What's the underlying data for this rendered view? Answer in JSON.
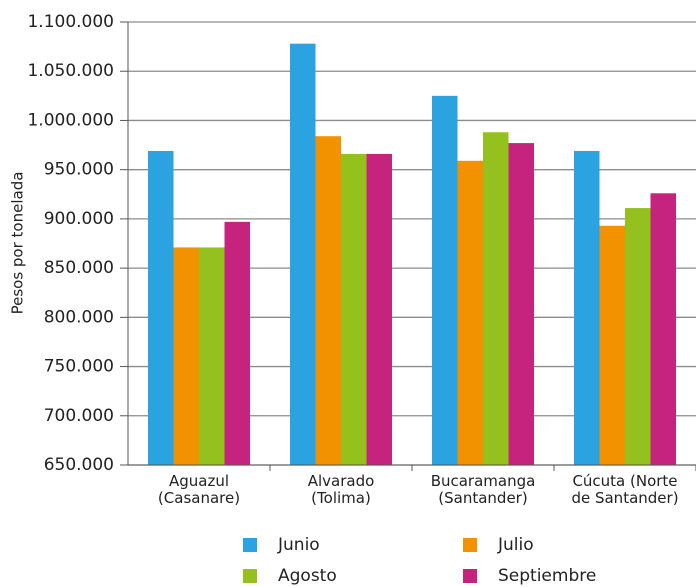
{
  "chart_data": {
    "type": "bar",
    "y_label": "Pesos por tonelada",
    "categories": [
      "Aguazul (Casanare)",
      "Alvarado (Tolima)",
      "Bucaramanga (Santander)",
      "Cúcuta (Norte de Santander)"
    ],
    "series": [
      {
        "name": "Junio",
        "color": "#2aa3e0",
        "values": [
          969000,
          1078000,
          1025000,
          969000
        ]
      },
      {
        "name": "Julio",
        "color": "#f39200",
        "values": [
          871000,
          984000,
          959000,
          893000
        ]
      },
      {
        "name": "Agosto",
        "color": "#95c11f",
        "values": [
          871000,
          966000,
          988000,
          911000
        ]
      },
      {
        "name": "Septiembre",
        "color": "#c6237f",
        "values": [
          897000,
          966000,
          977000,
          926000
        ]
      }
    ],
    "ylim": [
      650000,
      1100000
    ],
    "yticks": [
      {
        "value": 650000,
        "label": "650.000"
      },
      {
        "value": 700000,
        "label": "700.000"
      },
      {
        "value": 750000,
        "label": "750.000"
      },
      {
        "value": 800000,
        "label": "800.000"
      },
      {
        "value": 850000,
        "label": "850.000"
      },
      {
        "value": 900000,
        "label": "900.000"
      },
      {
        "value": 950000,
        "label": "950.000"
      },
      {
        "value": 1000000,
        "label": "1.000.000"
      },
      {
        "value": 1050000,
        "label": "1.050.000"
      },
      {
        "value": 1100000,
        "label": "1.100.000"
      }
    ],
    "grid": true
  }
}
